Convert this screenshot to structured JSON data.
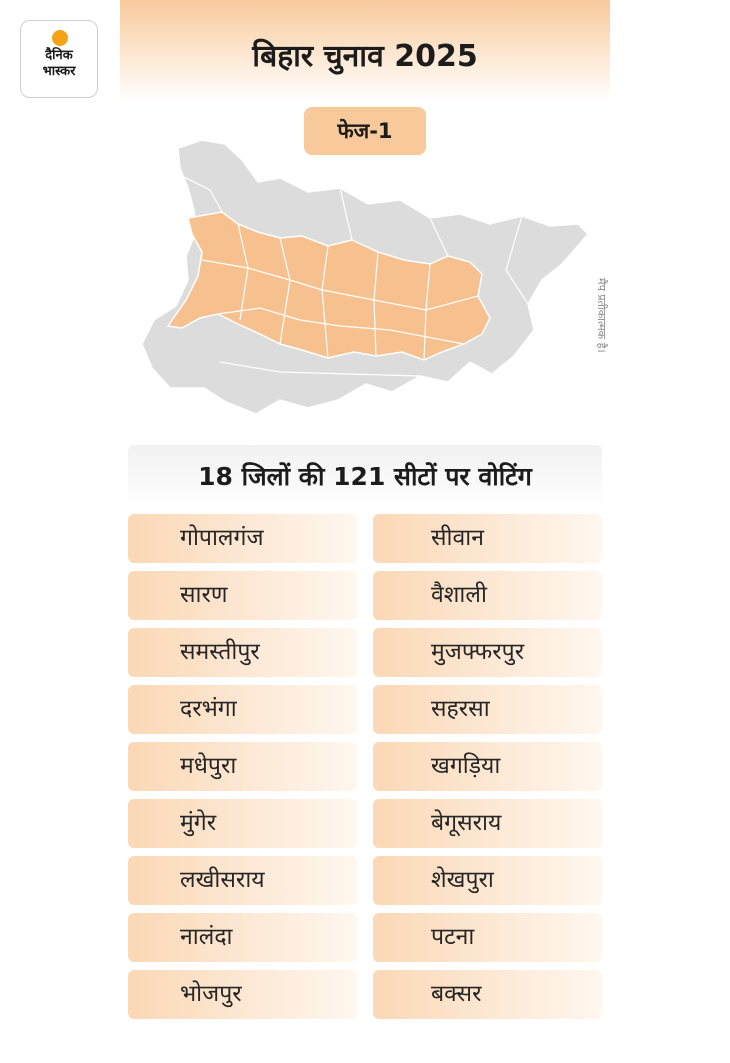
{
  "brand": {
    "line1": "दैनिक",
    "line2": "भास्कर"
  },
  "header": {
    "title": "बिहार चुनाव 2025",
    "phase": "फेज-1"
  },
  "map": {
    "note": "मैप प्रतीकात्मक है।",
    "highlight_color": "#f7c08f",
    "base_color": "#dcdcdc"
  },
  "section": {
    "heading": "18 जिलों की 121 सीटों पर वोटिंग"
  },
  "districts": [
    "गोपालगंज",
    "सीवान",
    "सारण",
    "वैशाली",
    "समस्तीपुर",
    "मुजफ्फरपुर",
    "दरभंगा",
    "सहरसा",
    "मधेपुरा",
    "खगड़िया",
    "मुंगेर",
    "बेगूसराय",
    "लखीसराय",
    "शेखपुरा",
    "नालंदा",
    "पटना",
    "भोजपुर",
    "बक्सर"
  ]
}
